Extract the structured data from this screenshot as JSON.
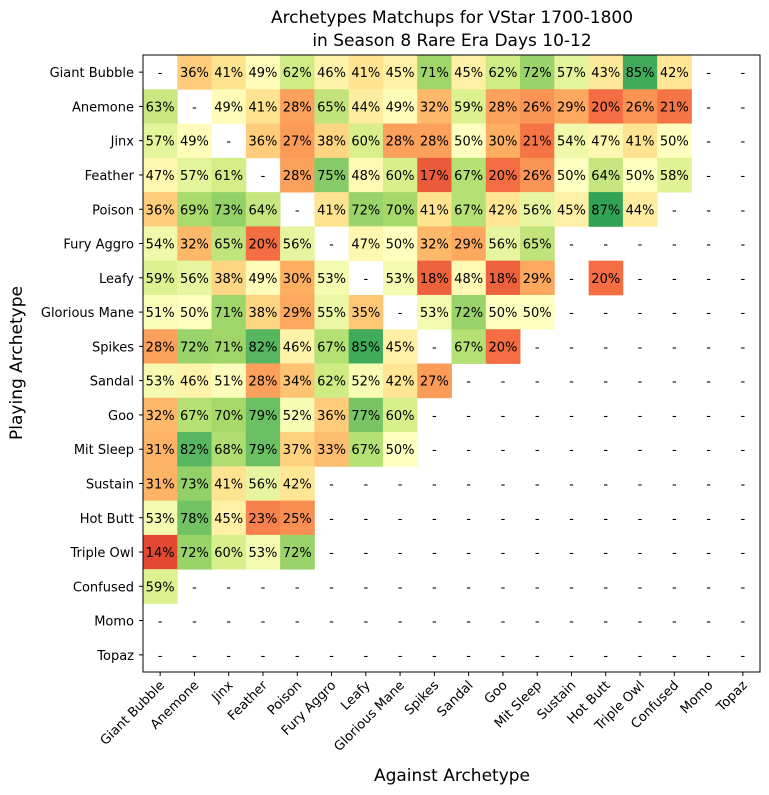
{
  "chart_data": {
    "type": "heatmap",
    "title": [
      "Archetypes Matchups for VStar 1700-1800",
      "in Season 8 Rare Era Days 10-12"
    ],
    "xlabel": "Against Archetype",
    "ylabel": "Playing Archetype",
    "color_scale": "RdYlGn",
    "color_range": [
      0,
      100
    ],
    "missing_text": "-",
    "rows": [
      "Giant Bubble",
      "Anemone",
      "Jinx",
      "Feather",
      "Poison",
      "Fury Aggro",
      "Leafy",
      "Glorious Mane",
      "Spikes",
      "Sandal",
      "Goo",
      "Mit Sleep",
      "Sustain",
      "Hot Butt",
      "Triple Owl",
      "Confused",
      "Momo",
      "Topaz"
    ],
    "columns": [
      "Giant Bubble",
      "Anemone",
      "Jinx",
      "Feather",
      "Poison",
      "Fury Aggro",
      "Leafy",
      "Glorious Mane",
      "Spikes",
      "Sandal",
      "Goo",
      "Mit Sleep",
      "Sustain",
      "Hot Butt",
      "Triple Owl",
      "Confused",
      "Momo",
      "Topaz"
    ],
    "values": [
      [
        null,
        36,
        41,
        49,
        62,
        46,
        41,
        45,
        71,
        45,
        62,
        72,
        57,
        43,
        85,
        42,
        null,
        null
      ],
      [
        63,
        null,
        49,
        41,
        28,
        65,
        44,
        49,
        32,
        59,
        28,
        26,
        29,
        20,
        26,
        21,
        null,
        null
      ],
      [
        57,
        49,
        null,
        36,
        27,
        38,
        60,
        28,
        28,
        50,
        30,
        21,
        54,
        47,
        41,
        50,
        null,
        null
      ],
      [
        47,
        57,
        61,
        null,
        28,
        75,
        48,
        60,
        17,
        67,
        20,
        26,
        50,
        64,
        50,
        58,
        null,
        null
      ],
      [
        36,
        69,
        73,
        64,
        null,
        41,
        72,
        70,
        41,
        67,
        42,
        56,
        45,
        87,
        44,
        null,
        null,
        null
      ],
      [
        54,
        32,
        65,
        20,
        56,
        null,
        47,
        50,
        32,
        29,
        56,
        65,
        null,
        null,
        null,
        null,
        null,
        null
      ],
      [
        59,
        56,
        38,
        49,
        30,
        53,
        null,
        53,
        18,
        48,
        18,
        29,
        null,
        20,
        null,
        null,
        null,
        null
      ],
      [
        51,
        50,
        71,
        38,
        29,
        55,
        35,
        null,
        53,
        72,
        50,
        50,
        null,
        null,
        null,
        null,
        null,
        null
      ],
      [
        28,
        72,
        71,
        82,
        46,
        67,
        85,
        45,
        null,
        67,
        20,
        null,
        null,
        null,
        null,
        null,
        null,
        null
      ],
      [
        53,
        46,
        51,
        28,
        34,
        62,
        52,
        42,
        27,
        null,
        null,
        null,
        null,
        null,
        null,
        null,
        null,
        null
      ],
      [
        32,
        67,
        70,
        79,
        52,
        36,
        77,
        60,
        null,
        null,
        null,
        null,
        null,
        null,
        null,
        null,
        null,
        null
      ],
      [
        31,
        82,
        68,
        79,
        37,
        33,
        67,
        50,
        null,
        null,
        null,
        null,
        null,
        null,
        null,
        null,
        null,
        null
      ],
      [
        31,
        73,
        41,
        56,
        42,
        null,
        null,
        null,
        null,
        null,
        null,
        null,
        null,
        null,
        null,
        null,
        null,
        null
      ],
      [
        53,
        78,
        45,
        23,
        25,
        null,
        null,
        null,
        null,
        null,
        null,
        null,
        null,
        null,
        null,
        null,
        null,
        null
      ],
      [
        14,
        72,
        60,
        53,
        72,
        null,
        null,
        null,
        null,
        null,
        null,
        null,
        null,
        null,
        null,
        null,
        null,
        null
      ],
      [
        59,
        null,
        null,
        null,
        null,
        null,
        null,
        null,
        null,
        null,
        null,
        null,
        null,
        null,
        null,
        null,
        null,
        null
      ],
      [
        null,
        null,
        null,
        null,
        null,
        null,
        null,
        null,
        null,
        null,
        null,
        null,
        null,
        null,
        null,
        null,
        null,
        null
      ],
      [
        null,
        null,
        null,
        null,
        null,
        null,
        null,
        null,
        null,
        null,
        null,
        null,
        null,
        null,
        null,
        null,
        null,
        null
      ]
    ]
  }
}
